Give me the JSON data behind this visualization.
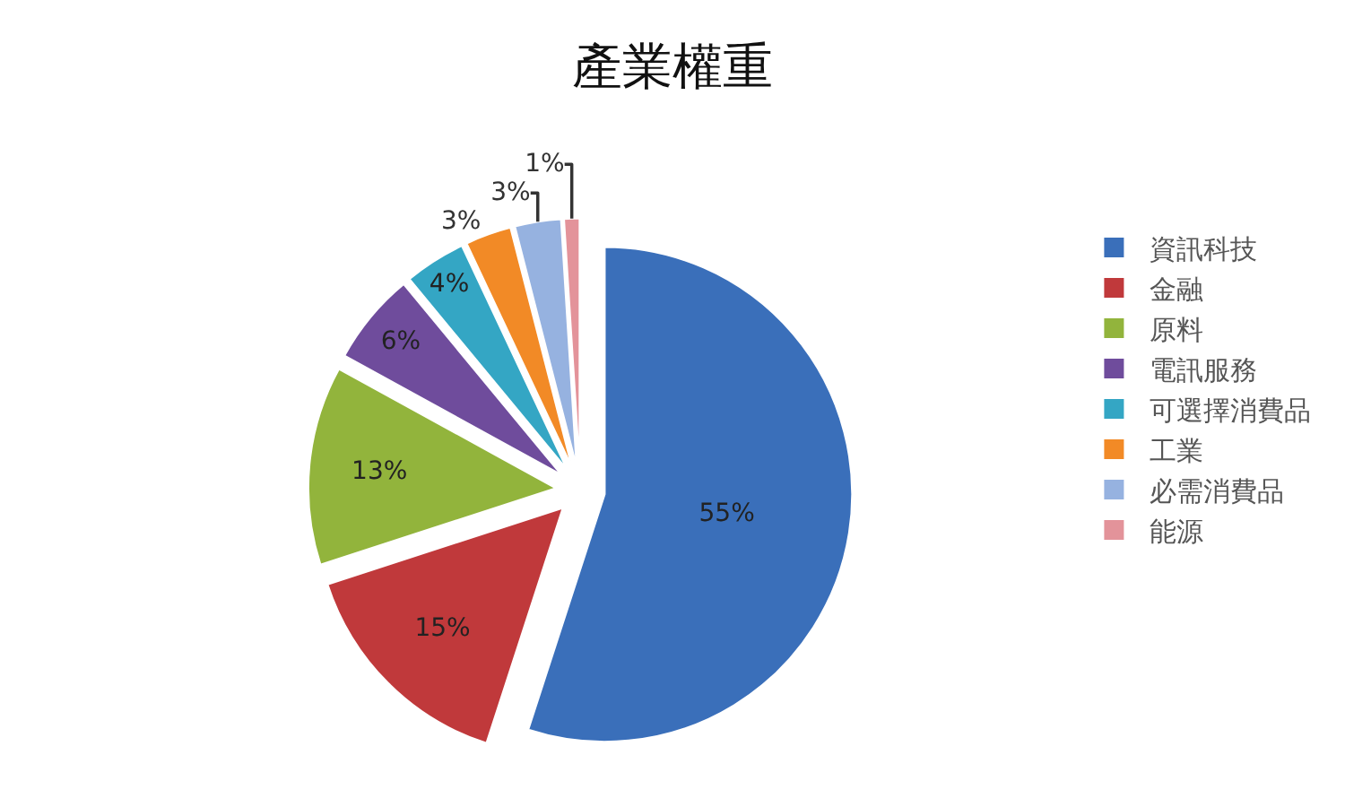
{
  "chart_data": {
    "type": "pie",
    "title": "產業權重",
    "categories": [
      "資訊科技",
      "金融",
      "原料",
      "電訊服務",
      "可選擇消費品",
      "工業",
      "必需消費品",
      "能源"
    ],
    "values": [
      55,
      15,
      13,
      6,
      4,
      3,
      3,
      1
    ],
    "value_labels": [
      "55%",
      "15%",
      "13%",
      "6%",
      "4%",
      "3%",
      "3%",
      "1%"
    ],
    "colors": [
      "#3a6fba",
      "#c0393b",
      "#92b43c",
      "#6f4c9c",
      "#34a6c4",
      "#f28a26",
      "#96b2e0",
      "#e3939a"
    ],
    "legend": "right"
  }
}
